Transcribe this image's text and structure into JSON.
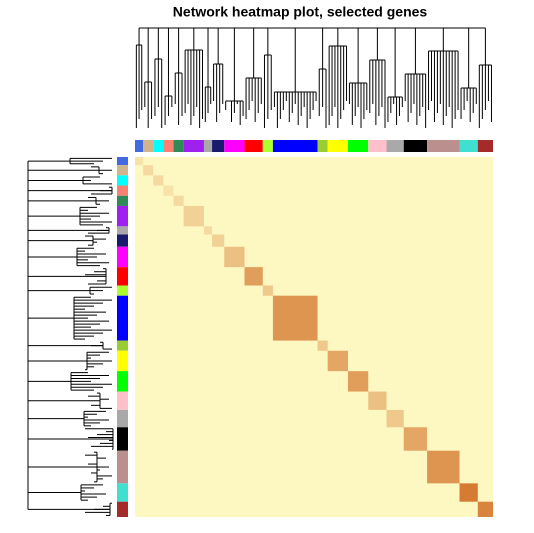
{
  "chart_data": {
    "type": "heatmap",
    "title": "Network heatmap plot, selected genes",
    "colors": [
      "#4169e1",
      "#d2b48c",
      "#00ffff",
      "#fa8072",
      "#2e8b57",
      "#a020f0",
      "#a9a9a9",
      "#191970",
      "#ff00ff",
      "#ff0000",
      "#adff2f",
      "#0000ff",
      "#9acd32",
      "#ffff00",
      "#00ff00",
      "#ffc0cb",
      "#a9a9a9",
      "#000000",
      "#bc8f8f",
      "#40e0d0",
      "#a52a2a"
    ],
    "sizes": [
      8,
      10,
      10,
      10,
      10,
      20,
      8,
      12,
      20,
      18,
      10,
      44,
      10,
      20,
      20,
      18,
      17,
      23,
      32,
      18,
      15
    ],
    "intensity": [
      0.15,
      0.2,
      0.2,
      0.15,
      0.2,
      0.25,
      0.2,
      0.25,
      0.35,
      0.55,
      0.3,
      0.6,
      0.3,
      0.5,
      0.55,
      0.35,
      0.3,
      0.5,
      0.6,
      0.75,
      0.7
    ]
  }
}
